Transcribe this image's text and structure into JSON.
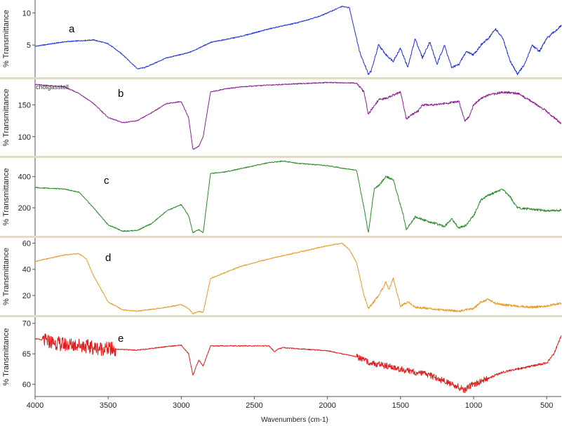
{
  "chart_data": {
    "type": "line",
    "xlabel": "Wavenumbers (cm-1)",
    "xlim": [
      4000,
      400
    ],
    "x_ticks": [
      4000,
      3500,
      3000,
      2500,
      2000,
      1500,
      1000,
      500
    ],
    "separator_color": "#e2dcc6",
    "panels": [
      {
        "letter": "a",
        "note": "",
        "ylabel": "% Transmittance",
        "ylim": [
          0,
          12
        ],
        "y_ticks": [
          5,
          10
        ],
        "color": "#1f2fe0",
        "x": [
          4000,
          3800,
          3600,
          3500,
          3400,
          3300,
          3250,
          3100,
          2950,
          2900,
          2800,
          2600,
          2400,
          2200,
          2050,
          1950,
          1900,
          1850,
          1780,
          1720,
          1700,
          1650,
          1600,
          1550,
          1500,
          1450,
          1400,
          1350,
          1300,
          1250,
          1200,
          1150,
          1100,
          1050,
          1000,
          950,
          900,
          850,
          800,
          750,
          700,
          650,
          600,
          550,
          500,
          450,
          400
        ],
        "y": [
          4.8,
          5.5,
          5.8,
          5.2,
          3.5,
          1.3,
          1.5,
          3.0,
          3.8,
          4.3,
          5.4,
          6.3,
          7.5,
          8.5,
          9.5,
          10.5,
          11.0,
          10.8,
          4.0,
          0.5,
          1.0,
          5.0,
          3.5,
          2.5,
          4.5,
          1.5,
          6.0,
          3.0,
          5.5,
          2.0,
          5.0,
          1.5,
          2.0,
          4.0,
          3.5,
          5.0,
          6.0,
          7.5,
          6.0,
          2.5,
          0.5,
          2.0,
          5.0,
          4.0,
          6.0,
          7.0,
          8.0
        ]
      },
      {
        "letter": "b",
        "note": "cholgasstoll",
        "ylabel": "% Transmittance",
        "ylim": [
          70,
          190
        ],
        "y_ticks": [
          100,
          150
        ],
        "color": "#8c1f93",
        "x": [
          4000,
          3800,
          3700,
          3600,
          3500,
          3400,
          3300,
          3200,
          3100,
          3000,
          2950,
          2920,
          2880,
          2850,
          2800,
          2700,
          2600,
          2400,
          2200,
          2000,
          1800,
          1750,
          1720,
          1650,
          1600,
          1500,
          1460,
          1440,
          1380,
          1350,
          1300,
          1200,
          1100,
          1060,
          1030,
          1000,
          950,
          900,
          800,
          700,
          600,
          500,
          400
        ],
        "y": [
          182,
          178,
          168,
          152,
          130,
          122,
          125,
          138,
          152,
          155,
          130,
          80,
          85,
          100,
          170,
          175,
          178,
          181,
          183,
          185,
          184,
          170,
          135,
          158,
          160,
          170,
          128,
          132,
          140,
          150,
          150,
          152,
          155,
          125,
          132,
          150,
          160,
          165,
          170,
          168,
          155,
          140,
          120
        ]
      },
      {
        "letter": "c",
        "note": "",
        "ylabel": "% Transmittance",
        "ylim": [
          20,
          520
        ],
        "y_ticks": [
          200,
          400
        ],
        "color": "#2a8a2a",
        "x": [
          4000,
          3800,
          3700,
          3600,
          3500,
          3400,
          3300,
          3200,
          3100,
          3000,
          2950,
          2920,
          2880,
          2850,
          2800,
          2700,
          2600,
          2400,
          2300,
          2200,
          2000,
          1800,
          1750,
          1720,
          1680,
          1650,
          1600,
          1550,
          1480,
          1460,
          1400,
          1300,
          1200,
          1150,
          1100,
          1050,
          1000,
          950,
          900,
          850,
          800,
          750,
          700,
          600,
          500,
          400
        ],
        "y": [
          330,
          320,
          300,
          200,
          90,
          50,
          55,
          100,
          180,
          220,
          150,
          40,
          60,
          40,
          420,
          430,
          450,
          490,
          500,
          485,
          470,
          440,
          200,
          40,
          320,
          340,
          400,
          380,
          150,
          60,
          140,
          110,
          80,
          130,
          70,
          90,
          150,
          250,
          280,
          300,
          320,
          270,
          200,
          190,
          180,
          185
        ]
      },
      {
        "letter": "d",
        "note": "",
        "ylabel": "% Transmittance",
        "ylim": [
          5,
          64
        ],
        "y_ticks": [
          20,
          40,
          60
        ],
        "color": "#e89a22",
        "x": [
          4000,
          3800,
          3700,
          3650,
          3600,
          3500,
          3400,
          3300,
          3100,
          3000,
          2950,
          2920,
          2880,
          2850,
          2800,
          2600,
          2400,
          2200,
          2000,
          1900,
          1850,
          1800,
          1750,
          1720,
          1650,
          1600,
          1580,
          1550,
          1500,
          1450,
          1400,
          1300,
          1200,
          1100,
          1000,
          950,
          900,
          850,
          800,
          700,
          600,
          500,
          400
        ],
        "y": [
          46,
          51,
          52,
          48,
          35,
          15,
          9,
          8,
          11,
          13,
          10,
          6,
          8,
          7,
          33,
          42,
          48,
          53,
          58,
          60,
          55,
          45,
          20,
          10,
          20,
          30,
          24,
          33,
          12,
          15,
          11,
          10,
          9,
          8,
          10,
          15,
          17,
          14,
          13,
          12,
          11,
          12,
          14
        ]
      },
      {
        "letter": "e",
        "note": "",
        "ylabel": "% Transmittance",
        "ylim": [
          58,
          71
        ],
        "y_ticks": [
          60,
          65,
          70
        ],
        "color": "#e01d1d",
        "x": [
          4000,
          3900,
          3800,
          3700,
          3600,
          3500,
          3300,
          3100,
          3000,
          2950,
          2920,
          2880,
          2850,
          2800,
          2600,
          2400,
          2360,
          2340,
          2300,
          2000,
          1800,
          1700,
          1600,
          1500,
          1400,
          1300,
          1200,
          1100,
          1060,
          1040,
          1000,
          900,
          800,
          700,
          600,
          500,
          450,
          400
        ],
        "y": [
          67.5,
          67.0,
          66.5,
          66.5,
          66.0,
          65.8,
          65.6,
          66.2,
          66.4,
          65.0,
          61.5,
          64.0,
          63.0,
          66.3,
          66.3,
          66.3,
          65.3,
          65.8,
          66.0,
          65.5,
          64.5,
          63.5,
          63.0,
          62.5,
          62.0,
          61.5,
          60.5,
          59.5,
          59.0,
          59.5,
          60.0,
          61.0,
          62.0,
          62.5,
          63.0,
          63.5,
          65.0,
          68.0
        ]
      }
    ]
  }
}
